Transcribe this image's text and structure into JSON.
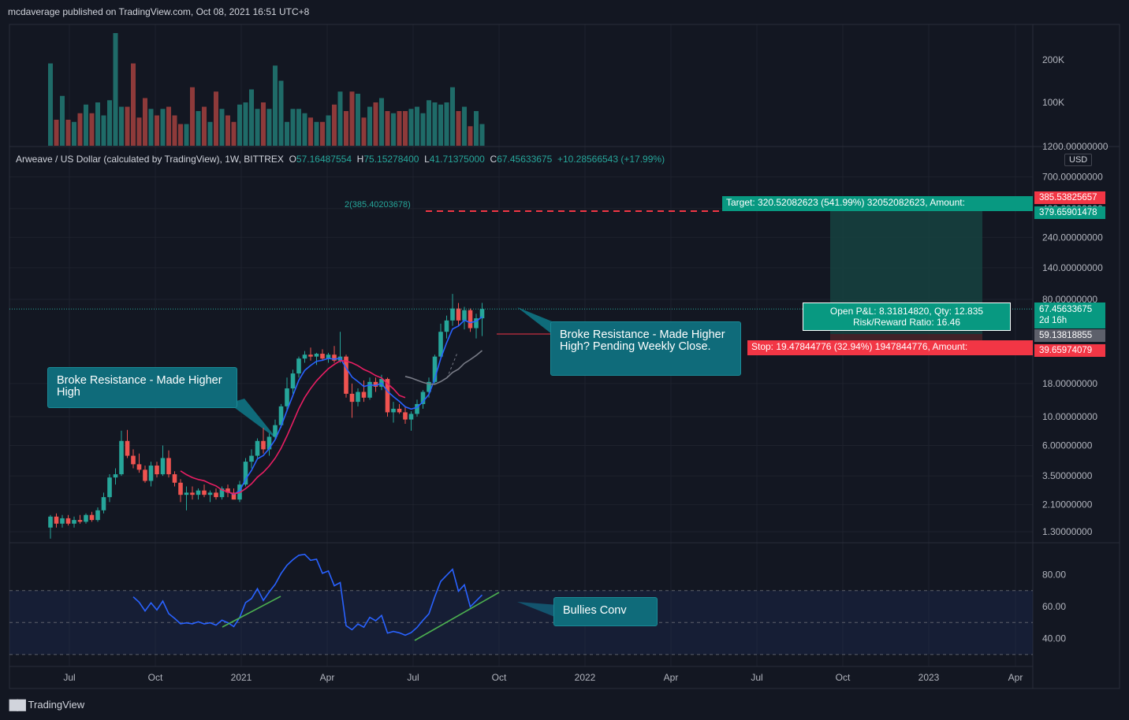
{
  "header": {
    "text": "mcdaverage published on TradingView.com, Oct 08, 2021 16:51 UTC+8"
  },
  "footer": {
    "logo_text": "TradingView"
  },
  "legend": {
    "symbol": "Arweave / US Dollar (calculated by TradingView), 1W, BITTREX",
    "o_label": "O",
    "o": "57.16487554",
    "h_label": "H",
    "h": "75.15278400",
    "l_label": "L",
    "l": "41.71375000",
    "c_label": "C",
    "c": "67.45633675",
    "change": "+10.28566543 (+17.99%)"
  },
  "annotations": {
    "left": "Broke Resistance - Made Higher High",
    "right": "Broke Resistance - Made Higher High? Pending Weekly Close.",
    "bottom": "Bullies Conv"
  },
  "position": {
    "target_label": "Target: 320.52082623 (541.99%) 32052082623, Amount:",
    "stop_label": "Stop: 19.47844776 (32.94%) 1947844776, Amount:",
    "pnl_line1": "Open P&L: 8.31814820, Qty: 12.835",
    "pnl_line2": "Risk/Reward Ratio: 16.46",
    "fib_label": "2(385.40203678)"
  },
  "price_tags": {
    "top_red": "385.53825657",
    "target_green": "379.65901478",
    "current": "67.45633675",
    "countdown": "2d 16h",
    "entry": "59.13818855",
    "stop": "39.65974079",
    "currency": "USD"
  },
  "colors": {
    "up": "#26a69a",
    "down": "#ef5350",
    "ma_fast": "#2962ff",
    "ma_mid": "#e91e63",
    "ma_slow": "#787b86",
    "rsi": "#2962ff",
    "bg": "#131722"
  },
  "chart_data": {
    "type": "candlestick",
    "price_axis": {
      "scale": "log",
      "ticks": [
        "1200.00000000",
        "700.00000000",
        "400.00000000",
        "240.00000000",
        "140.00000000",
        "80.00000000",
        "18.00000000",
        "10.00000000",
        "6.00000000",
        "3.50000000",
        "2.10000000",
        "1.30000000"
      ]
    },
    "volume_axis": {
      "ticks": [
        "200K",
        "100K"
      ]
    },
    "rsi_axis": {
      "ticks": [
        "80.00",
        "60.00",
        "40.00"
      ],
      "upper_band": 70,
      "lower_band": 30,
      "middle": 50
    },
    "time_axis": [
      "Jul",
      "Oct",
      "2021",
      "Apr",
      "Jul",
      "Oct",
      "2022",
      "Apr",
      "Jul",
      "Oct",
      "2023",
      "Apr"
    ],
    "candles": [
      {
        "o": 1.4,
        "h": 1.75,
        "l": 1.15,
        "c": 1.7
      },
      {
        "o": 1.7,
        "h": 1.8,
        "l": 1.4,
        "c": 1.5
      },
      {
        "o": 1.5,
        "h": 1.75,
        "l": 1.4,
        "c": 1.65
      },
      {
        "o": 1.65,
        "h": 1.75,
        "l": 1.45,
        "c": 1.5
      },
      {
        "o": 1.5,
        "h": 1.7,
        "l": 1.4,
        "c": 1.6
      },
      {
        "o": 1.6,
        "h": 1.75,
        "l": 1.5,
        "c": 1.55
      },
      {
        "o": 1.55,
        "h": 1.8,
        "l": 1.5,
        "c": 1.75
      },
      {
        "o": 1.75,
        "h": 1.85,
        "l": 1.55,
        "c": 1.6
      },
      {
        "o": 1.6,
        "h": 2.0,
        "l": 1.55,
        "c": 1.9
      },
      {
        "o": 1.9,
        "h": 2.6,
        "l": 1.8,
        "c": 2.4
      },
      {
        "o": 2.4,
        "h": 3.6,
        "l": 2.2,
        "c": 3.4
      },
      {
        "o": 3.4,
        "h": 4.0,
        "l": 3.0,
        "c": 3.6
      },
      {
        "o": 3.6,
        "h": 7.8,
        "l": 3.5,
        "c": 6.5
      },
      {
        "o": 6.5,
        "h": 7.9,
        "l": 4.8,
        "c": 5.0
      },
      {
        "o": 5.0,
        "h": 5.6,
        "l": 4.0,
        "c": 4.3
      },
      {
        "o": 4.3,
        "h": 5.2,
        "l": 3.7,
        "c": 3.9
      },
      {
        "o": 3.9,
        "h": 4.2,
        "l": 3.1,
        "c": 3.2
      },
      {
        "o": 3.2,
        "h": 4.5,
        "l": 2.9,
        "c": 4.2
      },
      {
        "o": 4.2,
        "h": 4.5,
        "l": 3.4,
        "c": 3.6
      },
      {
        "o": 3.6,
        "h": 6.0,
        "l": 3.5,
        "c": 4.8
      },
      {
        "o": 4.8,
        "h": 5.5,
        "l": 3.4,
        "c": 3.6
      },
      {
        "o": 3.6,
        "h": 3.8,
        "l": 2.9,
        "c": 3.1
      },
      {
        "o": 3.1,
        "h": 3.3,
        "l": 2.2,
        "c": 2.5
      },
      {
        "o": 2.5,
        "h": 2.9,
        "l": 1.9,
        "c": 2.6
      },
      {
        "o": 2.6,
        "h": 2.9,
        "l": 2.3,
        "c": 2.5
      },
      {
        "o": 2.5,
        "h": 2.8,
        "l": 2.3,
        "c": 2.7
      },
      {
        "o": 2.7,
        "h": 3.0,
        "l": 2.4,
        "c": 2.5
      },
      {
        "o": 2.5,
        "h": 2.7,
        "l": 2.2,
        "c": 2.6
      },
      {
        "o": 2.6,
        "h": 2.8,
        "l": 2.3,
        "c": 2.4
      },
      {
        "o": 2.4,
        "h": 2.9,
        "l": 2.3,
        "c": 2.8
      },
      {
        "o": 2.8,
        "h": 3.0,
        "l": 2.4,
        "c": 2.6
      },
      {
        "o": 2.6,
        "h": 2.8,
        "l": 2.3,
        "c": 2.3
      },
      {
        "o": 2.3,
        "h": 3.2,
        "l": 2.2,
        "c": 3.0
      },
      {
        "o": 3.0,
        "h": 4.8,
        "l": 2.9,
        "c": 4.5
      },
      {
        "o": 4.5,
        "h": 5.6,
        "l": 4.0,
        "c": 5.0
      },
      {
        "o": 5.0,
        "h": 6.8,
        "l": 4.8,
        "c": 6.5
      },
      {
        "o": 6.5,
        "h": 8.2,
        "l": 5.2,
        "c": 5.6
      },
      {
        "o": 5.6,
        "h": 7.4,
        "l": 5.0,
        "c": 7.0
      },
      {
        "o": 7.0,
        "h": 9.5,
        "l": 6.6,
        "c": 8.6
      },
      {
        "o": 8.6,
        "h": 12.5,
        "l": 8.2,
        "c": 12.0
      },
      {
        "o": 12.0,
        "h": 20.0,
        "l": 11.0,
        "c": 16.5
      },
      {
        "o": 16.5,
        "h": 23.0,
        "l": 15.0,
        "c": 21.5
      },
      {
        "o": 21.5,
        "h": 29.0,
        "l": 20.0,
        "c": 28.0
      },
      {
        "o": 28.0,
        "h": 32.0,
        "l": 26.0,
        "c": 30.0
      },
      {
        "o": 30.0,
        "h": 34.0,
        "l": 27.0,
        "c": 29.0
      },
      {
        "o": 29.0,
        "h": 31.0,
        "l": 25.0,
        "c": 30.5
      },
      {
        "o": 30.5,
        "h": 33.0,
        "l": 27.0,
        "c": 28.0
      },
      {
        "o": 28.0,
        "h": 31.0,
        "l": 26.0,
        "c": 30.0
      },
      {
        "o": 30.0,
        "h": 35.0,
        "l": 26.0,
        "c": 27.0
      },
      {
        "o": 27.0,
        "h": 45.0,
        "l": 26.0,
        "c": 29.0
      },
      {
        "o": 29.0,
        "h": 30.0,
        "l": 14.0,
        "c": 15.0
      },
      {
        "o": 15.0,
        "h": 18.0,
        "l": 9.8,
        "c": 13.0
      },
      {
        "o": 13.0,
        "h": 16.5,
        "l": 12.0,
        "c": 15.5
      },
      {
        "o": 15.5,
        "h": 19.0,
        "l": 13.0,
        "c": 14.0
      },
      {
        "o": 14.0,
        "h": 20.0,
        "l": 13.5,
        "c": 18.5
      },
      {
        "o": 18.5,
        "h": 20.0,
        "l": 15.5,
        "c": 17.0
      },
      {
        "o": 17.0,
        "h": 21.0,
        "l": 16.0,
        "c": 19.5
      },
      {
        "o": 19.5,
        "h": 20.0,
        "l": 10.0,
        "c": 10.8
      },
      {
        "o": 10.8,
        "h": 13.0,
        "l": 9.0,
        "c": 11.5
      },
      {
        "o": 11.5,
        "h": 12.5,
        "l": 10.5,
        "c": 10.8
      },
      {
        "o": 10.8,
        "h": 12.0,
        "l": 8.8,
        "c": 9.5
      },
      {
        "o": 9.5,
        "h": 11.0,
        "l": 7.8,
        "c": 10.5
      },
      {
        "o": 10.5,
        "h": 13.5,
        "l": 10.0,
        "c": 12.5
      },
      {
        "o": 12.5,
        "h": 16.0,
        "l": 11.5,
        "c": 15.5
      },
      {
        "o": 15.5,
        "h": 20.0,
        "l": 14.0,
        "c": 18.5
      },
      {
        "o": 18.5,
        "h": 30.0,
        "l": 18.0,
        "c": 29.0
      },
      {
        "o": 29.0,
        "h": 52.0,
        "l": 28.0,
        "c": 45.0
      },
      {
        "o": 45.0,
        "h": 60.0,
        "l": 40.0,
        "c": 55.0
      },
      {
        "o": 55.0,
        "h": 88.0,
        "l": 50.0,
        "c": 68.0
      },
      {
        "o": 68.0,
        "h": 75.0,
        "l": 50.0,
        "c": 55.0
      },
      {
        "o": 55.0,
        "h": 70.0,
        "l": 47.0,
        "c": 66.0
      },
      {
        "o": 66.0,
        "h": 68.0,
        "l": 45.0,
        "c": 48.0
      },
      {
        "o": 48.0,
        "h": 62.0,
        "l": 40.0,
        "c": 57.16
      },
      {
        "o": 57.16,
        "h": 75.15,
        "l": 41.71,
        "c": 67.46
      }
    ],
    "volume": [
      190,
      60,
      115,
      60,
      55,
      75,
      95,
      75,
      100,
      70,
      105,
      260,
      90,
      90,
      190,
      65,
      110,
      85,
      70,
      85,
      90,
      70,
      50,
      50,
      135,
      80,
      90,
      55,
      125,
      85,
      70,
      55,
      95,
      100,
      130,
      85,
      100,
      85,
      185,
      150,
      55,
      85,
      85,
      75,
      65,
      55,
      55,
      70,
      95,
      125,
      80,
      125,
      120,
      65,
      90,
      100,
      110,
      80,
      75,
      80,
      80,
      85,
      90,
      75,
      105,
      100,
      95,
      100,
      135,
      80,
      90,
      45,
      80,
      50
    ]
  }
}
